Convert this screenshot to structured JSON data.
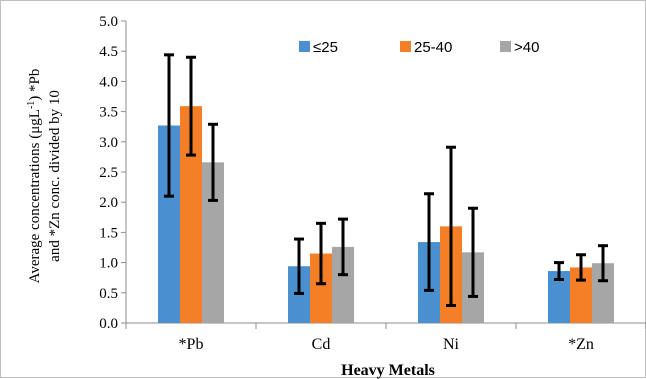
{
  "chart_data": {
    "type": "bar",
    "categories": [
      "*Pb",
      "Cd",
      "Ni",
      "*Zn"
    ],
    "series": [
      {
        "name": "≤25",
        "color": "#4a90d1",
        "values": [
          3.27,
          0.94,
          1.34,
          0.86
        ],
        "error": [
          1.17,
          0.45,
          0.8,
          0.14
        ]
      },
      {
        "name": "25-40",
        "color": "#f57f27",
        "values": [
          3.59,
          1.15,
          1.6,
          0.92
        ],
        "error": [
          0.81,
          0.5,
          1.31,
          0.21
        ]
      },
      {
        "name": ">40",
        "color": "#a6a6a6",
        "values": [
          2.66,
          1.26,
          1.17,
          0.99
        ],
        "error": [
          0.63,
          0.46,
          0.73,
          0.29
        ]
      }
    ],
    "xlabel": "Heavy Metals",
    "ylabel": {
      "line1_pre": "Average concentrations (μgL",
      "line1_sup": "-1",
      "line1_post": ") *Pb",
      "line2": "and *Zn conc. divided by 10"
    },
    "ylim": [
      0,
      5
    ],
    "yticks": [
      "0.0",
      "0.5",
      "1.0",
      "1.5",
      "2.0",
      "2.5",
      "3.0",
      "3.5",
      "4.0",
      "4.5",
      "5.0"
    ],
    "legend_position": "top-right",
    "grid": false
  }
}
